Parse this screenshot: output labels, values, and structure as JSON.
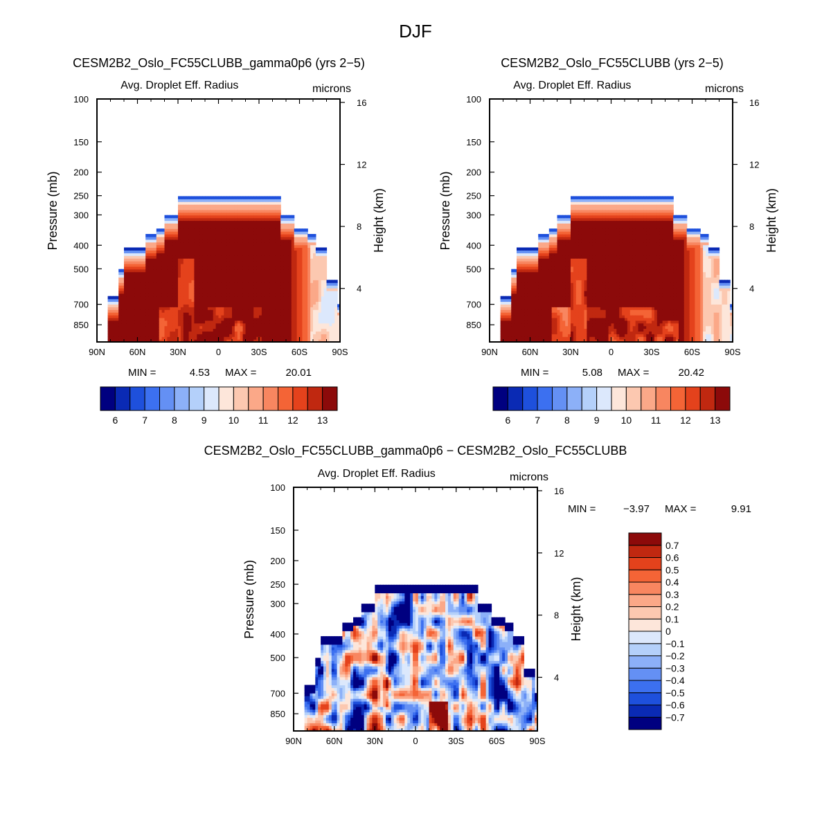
{
  "figure_title": "DJF",
  "chart_data": [
    {
      "type": "heatmap",
      "id": "top-left",
      "title": "CESM2B2_Oslo_FC55CLUBB_gamma0p6 (yrs 2-5)",
      "subtitle": "Avg. Droplet Eff. Radius",
      "units": "microns",
      "xlabel": "",
      "ylabel": "Pressure (mb)",
      "y2label": "Height (km)",
      "x_ticks": [
        "90N",
        "60N",
        "30N",
        "0",
        "30S",
        "60S",
        "90S"
      ],
      "y_ticks": [
        "100",
        "150",
        "200",
        "250",
        "300",
        "400",
        "500",
        "700",
        "850"
      ],
      "y2_ticks": [
        "16",
        "12",
        "8",
        "4"
      ],
      "stats": {
        "min_label": "MIN =",
        "min": "4.53",
        "max_label": "MAX =",
        "max": "20.01"
      },
      "colorbar_ticks": [
        "6",
        "7",
        "8",
        "9",
        "10",
        "11",
        "12",
        "13"
      ],
      "ylim": [
        1000,
        100
      ],
      "xlim": [
        90,
        -90
      ]
    },
    {
      "type": "heatmap",
      "id": "top-right",
      "title": "CESM2B2_Oslo_FC55CLUBB (yrs 2-5)",
      "subtitle": "Avg. Droplet Eff. Radius",
      "units": "microns",
      "xlabel": "",
      "ylabel": "Pressure (mb)",
      "y2label": "Height (km)",
      "x_ticks": [
        "90N",
        "60N",
        "30N",
        "0",
        "30S",
        "60S",
        "90S"
      ],
      "y_ticks": [
        "100",
        "150",
        "200",
        "250",
        "300",
        "400",
        "500",
        "700",
        "850"
      ],
      "y2_ticks": [
        "16",
        "12",
        "8",
        "4"
      ],
      "stats": {
        "min_label": "MIN =",
        "min": "5.08",
        "max_label": "MAX =",
        "max": "20.42"
      },
      "colorbar_ticks": [
        "6",
        "7",
        "8",
        "9",
        "10",
        "11",
        "12",
        "13"
      ],
      "ylim": [
        1000,
        100
      ],
      "xlim": [
        90,
        -90
      ]
    },
    {
      "type": "heatmap",
      "id": "bottom-diff",
      "title": "CESM2B2_Oslo_FC55CLUBB_gamma0p6 - CESM2B2_Oslo_FC55CLUBB",
      "subtitle": "Avg. Droplet Eff. Radius",
      "units": "microns",
      "xlabel": "",
      "ylabel": "Pressure (mb)",
      "y2label": "Height (km)",
      "x_ticks": [
        "90N",
        "60N",
        "30N",
        "0",
        "30S",
        "60S",
        "90S"
      ],
      "y_ticks": [
        "100",
        "150",
        "200",
        "250",
        "300",
        "400",
        "500",
        "700",
        "850"
      ],
      "y2_ticks": [
        "16",
        "12",
        "8",
        "4"
      ],
      "stats": {
        "min_label": "MIN =",
        "min": "-3.97",
        "max_label": "MAX =",
        "max": "9.91"
      },
      "colorbar_ticks": [
        "0.7",
        "0.6",
        "0.5",
        "0.4",
        "0.3",
        "0.2",
        "0.1",
        "0",
        "-0.1",
        "-0.2",
        "-0.3",
        "-0.4",
        "-0.5",
        "-0.6",
        "-0.7"
      ],
      "ylim": [
        1000,
        100
      ],
      "xlim": [
        90,
        -90
      ]
    }
  ],
  "palette": [
    "#000080",
    "#0a2ab4",
    "#1e50dc",
    "#3c70f0",
    "#6490f4",
    "#8cb0f8",
    "#b4d0fa",
    "#dce8fc",
    "#fde6da",
    "#fcc8b0",
    "#fba888",
    "#f88660",
    "#f46436",
    "#e4421c",
    "#c02810",
    "#8c0a0a"
  ],
  "colors": {
    "saturated": "#8c0a0a",
    "background": "#ffffff",
    "frame": "#000000"
  }
}
